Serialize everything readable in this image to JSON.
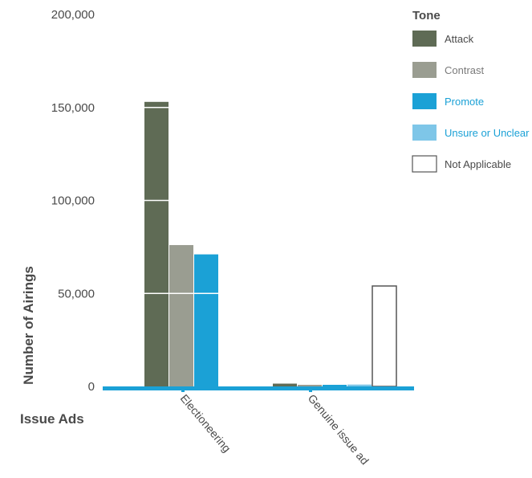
{
  "chart_data": {
    "type": "bar",
    "xlabel": "Issue Ads",
    "ylabel": "Number of Airings",
    "ylim": [
      0,
      200000
    ],
    "yticks": [
      0,
      50000,
      100000,
      150000,
      200000
    ],
    "ytick_labels": [
      "0",
      "50,000",
      "100,000",
      "150,000",
      "200,000"
    ],
    "categories": [
      "Electioneering",
      "Genuine issue ad"
    ],
    "legend_title": "Tone",
    "legend_placement": "top-right",
    "grid": false,
    "series": [
      {
        "name": "Attack",
        "color": "#5f6b55",
        "values": [
          153000,
          1500
        ]
      },
      {
        "name": "Contrast",
        "color": "#9a9d91",
        "values": [
          76000,
          300
        ]
      },
      {
        "name": "Promote",
        "color": "#1ba1d6",
        "values": [
          71000,
          500
        ]
      },
      {
        "name": "Unsure or Unclear",
        "color": "#7ec6e8",
        "values": [
          0,
          1000
        ]
      },
      {
        "name": "Not Applicable",
        "color": "#ffffff",
        "stroke": "#555555",
        "values": [
          0,
          54000
        ]
      }
    ],
    "legend_label_colors": {
      "Attack": "#4a4a4a",
      "Contrast": "#7a7a7a",
      "Promote": "#1ba1d6",
      "Unsure or Unclear": "#1ba1d6",
      "Not Applicable": "#4a4a4a"
    },
    "baseline_color": "#1ba1d6"
  }
}
